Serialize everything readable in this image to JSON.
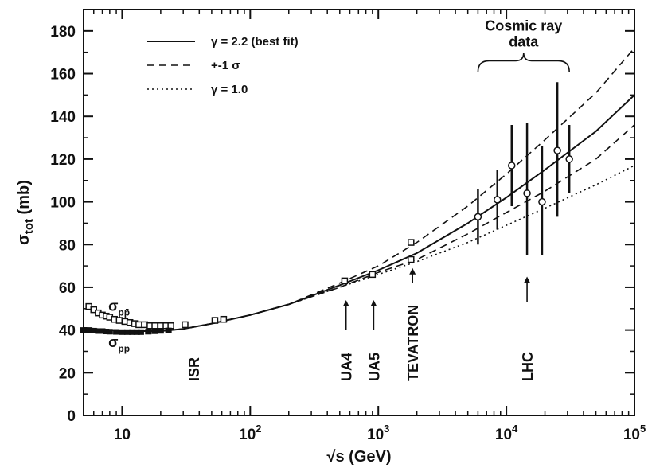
{
  "chart_data": {
    "type": "line",
    "xscale": "log",
    "xlim": [
      5,
      100000
    ],
    "ylim": [
      0,
      190
    ],
    "grid": false,
    "legend_position": "top-left",
    "xlabel": "√s (GeV)",
    "ylabel": "σtot (mb)",
    "ylabel_main": "σ",
    "ylabel_sub": "tot",
    "ylabel_unit": " (mb)",
    "xticks": [
      {
        "value": 10,
        "label": "10"
      },
      {
        "value": 100,
        "label": "10",
        "exp": "2"
      },
      {
        "value": 1000,
        "label": "10",
        "exp": "3"
      },
      {
        "value": 10000,
        "label": "10",
        "exp": "4"
      },
      {
        "value": 100000,
        "label": "10",
        "exp": "5"
      }
    ],
    "yticks": [
      0,
      20,
      40,
      60,
      80,
      100,
      120,
      140,
      160,
      180
    ],
    "legend": [
      {
        "label": "γ = 2.2 (best fit)",
        "style": "solid"
      },
      {
        "label": "+-1 σ",
        "style": "dashed"
      },
      {
        "label": "γ = 1.0",
        "style": "dotted"
      }
    ],
    "series": [
      {
        "name": "γ = 2.2 (best fit)",
        "style": "solid",
        "x": [
          5,
          10,
          20,
          30,
          50,
          100,
          200,
          500,
          1000,
          2000,
          5000,
          10000,
          20000,
          50000,
          100000
        ],
        "y": [
          41,
          39.5,
          39.5,
          40.5,
          43,
          47,
          52,
          61,
          68,
          76,
          90,
          102,
          115,
          133,
          150
        ]
      },
      {
        "name": "+1σ",
        "style": "dashed",
        "x": [
          5,
          10,
          20,
          30,
          50,
          100,
          200,
          500,
          1000,
          2000,
          5000,
          10000,
          20000,
          50000,
          100000
        ],
        "y": [
          41,
          39.5,
          39.5,
          40.5,
          43,
          47,
          52,
          62,
          70,
          81,
          98,
          113,
          129,
          151,
          172
        ]
      },
      {
        "name": "-1σ",
        "style": "dashed",
        "x": [
          5,
          10,
          20,
          30,
          50,
          100,
          200,
          500,
          1000,
          2000,
          5000,
          10000,
          20000,
          50000,
          100000
        ],
        "y": [
          41,
          39.5,
          39.5,
          40.5,
          43,
          47,
          52,
          60,
          67,
          73,
          85,
          95,
          105,
          120,
          136
        ]
      },
      {
        "name": "γ = 1.0",
        "style": "dotted",
        "x": [
          5,
          10,
          20,
          30,
          50,
          100,
          200,
          500,
          1000,
          2000,
          5000,
          10000,
          20000,
          50000,
          100000
        ],
        "y": [
          41,
          39.5,
          39.5,
          40.5,
          43,
          47,
          52,
          60,
          66,
          72,
          81,
          89,
          97,
          108,
          117
        ]
      }
    ],
    "data_pp_bar": {
      "label_main": "σ",
      "label_sub": "pp̄",
      "x": [
        5.5,
        6,
        6.5,
        7,
        7.5,
        8,
        8.7,
        9.5,
        10.5,
        11.5,
        12.5,
        13.5,
        15,
        16.5,
        18,
        20,
        22,
        24,
        31,
        53,
        62,
        546,
        900,
        1800,
        1800
      ],
      "y": [
        51,
        49.5,
        48,
        47,
        46.5,
        46,
        45,
        44.5,
        44,
        43.5,
        43,
        42.5,
        42.5,
        42,
        42,
        42,
        42,
        42,
        42.5,
        44.5,
        45,
        63,
        66,
        81,
        73
      ]
    },
    "data_pp": {
      "label_main": "σ",
      "label_sub": "pp",
      "x": [
        5,
        5.5,
        6,
        6.5,
        7,
        7.5,
        8,
        9,
        10,
        11,
        12,
        13,
        14,
        16,
        18,
        20,
        23
      ],
      "y": [
        40,
        40,
        39.7,
        39.5,
        39.5,
        39.3,
        39.2,
        39.1,
        39,
        39,
        39,
        39,
        39,
        39.2,
        39.4,
        39.6,
        39.8
      ]
    },
    "cosmic_data": [
      {
        "x": 6000,
        "y": 93,
        "lo": 80,
        "hi": 106
      },
      {
        "x": 8500,
        "y": 101,
        "lo": 87,
        "hi": 115
      },
      {
        "x": 11000,
        "y": 117,
        "lo": 98,
        "hi": 136
      },
      {
        "x": 14500,
        "y": 104,
        "lo": 75,
        "hi": 137
      },
      {
        "x": 19000,
        "y": 100,
        "lo": 75,
        "hi": 126
      },
      {
        "x": 25000,
        "y": 124,
        "lo": 93,
        "hi": 156
      },
      {
        "x": 31000,
        "y": 120,
        "lo": 104,
        "hi": 136
      }
    ],
    "annotations": [
      {
        "text": "ISR",
        "x": 36,
        "y": 16,
        "rotate": true
      },
      {
        "text": "UA4",
        "x": 560,
        "y": 16,
        "rotate": true,
        "arrow_y": [
          40,
          54
        ]
      },
      {
        "text": "UA5",
        "x": 920,
        "y": 16,
        "rotate": true,
        "arrow_y": [
          40,
          54
        ]
      },
      {
        "text": "TEVATRON",
        "x": 1850,
        "y": 16,
        "rotate": true,
        "arrow_y": [
          62,
          69
        ]
      },
      {
        "text": "LHC",
        "x": 14500,
        "y": 16,
        "rotate": true,
        "arrow_y": [
          53,
          65
        ]
      }
    ],
    "cosmic_bracket": {
      "line1": "Cosmic ray",
      "line2": "data",
      "x_from": 6000,
      "x_to": 31000,
      "y": 166
    }
  }
}
